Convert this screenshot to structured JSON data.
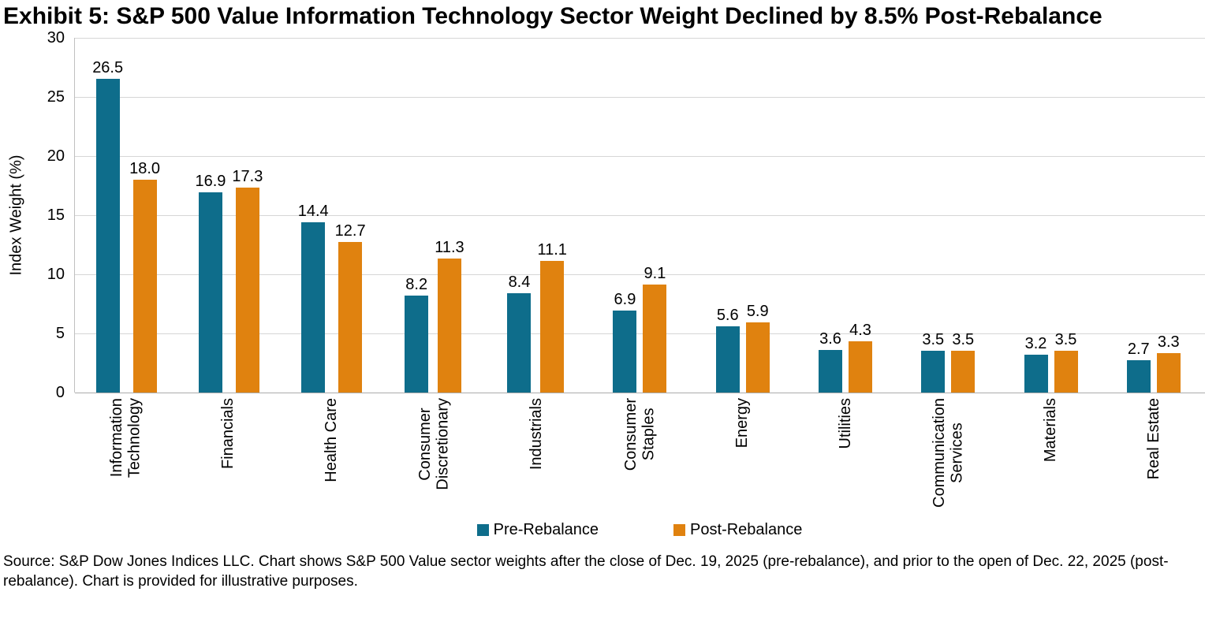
{
  "title": "Exhibit 5: S&P 500 Value Information Technology Sector Weight Declined by 8.5% Post-Rebalance",
  "source": "Source: S&P Dow Jones Indices LLC. Chart shows S&P 500 Value sector weights after the close of Dec. 19, 2025 (pre-rebalance), and prior to the open of Dec. 22, 2025 (post-rebalance). Chart is provided for illustrative purposes.",
  "colors": {
    "pre_rebalance": "#0E6D8B",
    "post_rebalance": "#E0820F",
    "gridline": "#d6d6d6",
    "axis": "#ababab"
  },
  "chart_data": {
    "type": "bar",
    "title": "Exhibit 5: S&P 500 Value Information Technology Sector Weight Declined by 8.5% Post-Rebalance",
    "xlabel": "",
    "ylabel": "Index Weight (%)",
    "ylim": [
      0,
      30
    ],
    "yticks": [
      0,
      5,
      10,
      15,
      20,
      25,
      30
    ],
    "grid": true,
    "legend_position": "bottom",
    "categories": [
      "Information\nTechnology",
      "Financials",
      "Health Care",
      "Consumer\nDiscretionary",
      "Industrials",
      "Consumer\nStaples",
      "Energy",
      "Utilities",
      "Communication\nServices",
      "Materials",
      "Real Estate"
    ],
    "series": [
      {
        "name": "Pre-Rebalance",
        "color": "#0E6D8B",
        "values": [
          26.5,
          16.9,
          14.4,
          8.2,
          8.4,
          6.9,
          5.6,
          3.6,
          3.5,
          3.2,
          2.7
        ]
      },
      {
        "name": "Post-Rebalance",
        "color": "#E0820F",
        "values": [
          18.0,
          17.3,
          12.7,
          11.3,
          11.1,
          9.1,
          5.9,
          4.3,
          3.5,
          3.5,
          3.3
        ]
      }
    ]
  }
}
